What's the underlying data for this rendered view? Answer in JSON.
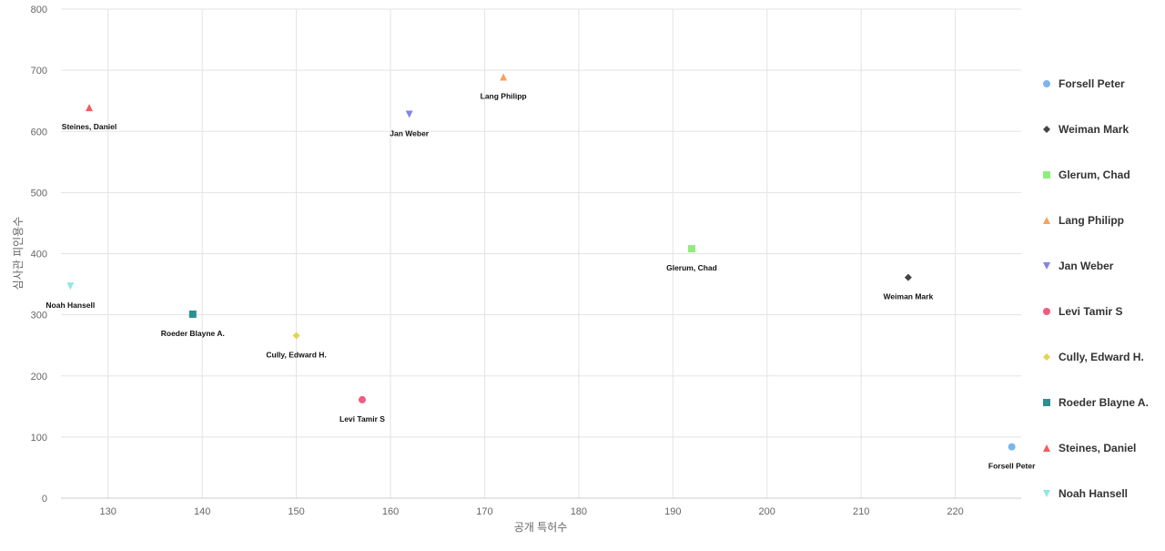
{
  "chart_data": {
    "type": "scatter",
    "xlabel": "공개 특허수",
    "ylabel": "심사관 피인용수",
    "xlim": [
      125,
      227
    ],
    "ylim": [
      0,
      800
    ],
    "x_ticks": [
      130,
      140,
      150,
      160,
      170,
      180,
      190,
      200,
      210,
      220
    ],
    "y_ticks": [
      0,
      100,
      200,
      300,
      400,
      500,
      600,
      700,
      800
    ],
    "grid": true,
    "legend_position": "right",
    "series": [
      {
        "name": "Forsell Peter",
        "x": 226,
        "y": 84,
        "marker": "circle",
        "color": "#7cb5ec"
      },
      {
        "name": "Weiman Mark",
        "x": 215,
        "y": 361,
        "marker": "diamond",
        "color": "#434348"
      },
      {
        "name": "Glerum, Chad",
        "x": 192,
        "y": 408,
        "marker": "square",
        "color": "#90ed7d"
      },
      {
        "name": "Lang Philipp",
        "x": 172,
        "y": 689,
        "marker": "triangle",
        "color": "#f7a35c"
      },
      {
        "name": "Jan Weber",
        "x": 162,
        "y": 628,
        "marker": "triangle-down",
        "color": "#8085e9"
      },
      {
        "name": "Levi Tamir S",
        "x": 157,
        "y": 161,
        "marker": "circle",
        "color": "#f15c80"
      },
      {
        "name": "Cully, Edward H.",
        "x": 150,
        "y": 266,
        "marker": "diamond",
        "color": "#e4d354"
      },
      {
        "name": "Roeder Blayne A.",
        "x": 139,
        "y": 301,
        "marker": "square",
        "color": "#2b908f"
      },
      {
        "name": "Steines, Daniel",
        "x": 128,
        "y": 639,
        "marker": "triangle",
        "color": "#f45b5b"
      },
      {
        "name": "Noah Hansell",
        "x": 126,
        "y": 347,
        "marker": "triangle-down",
        "color": "#91e8e1"
      }
    ]
  }
}
